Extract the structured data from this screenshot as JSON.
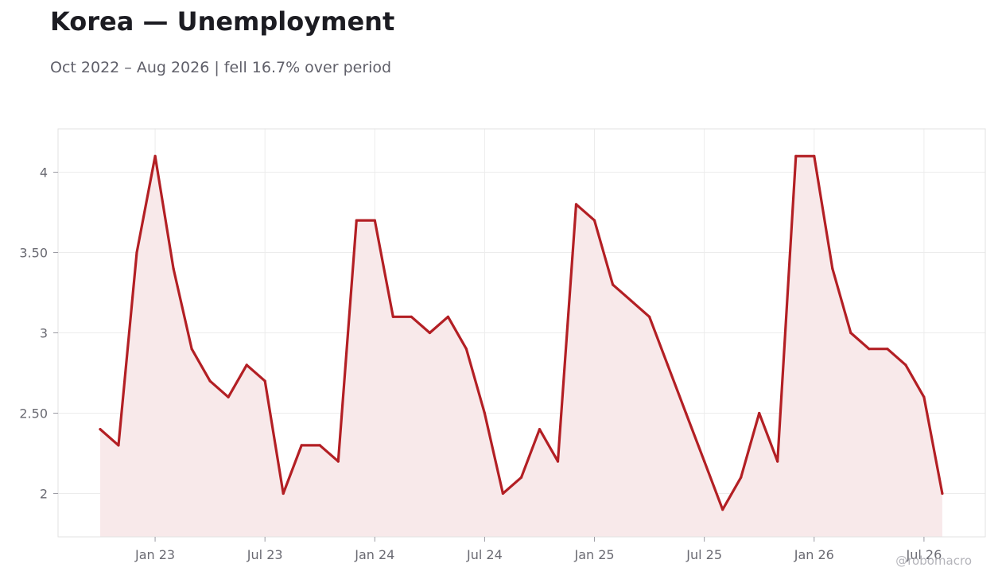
{
  "header": {
    "title": "Korea — Unemployment",
    "subtitle": "Oct 2022 – Aug 2026 | fell 16.7% over period"
  },
  "watermark": "@robomacro",
  "colors": {
    "line": "#b31f24",
    "fill": "#f8e9ea",
    "grid": "#ececec",
    "frame": "#e2e2e2"
  },
  "chart_data": {
    "type": "area",
    "title": "Korea — Unemployment",
    "xlabel": "",
    "ylabel": "",
    "grid": true,
    "legend": "none",
    "ylim": [
      1.73,
      4.27
    ],
    "x": [
      "2022-10",
      "2022-11",
      "2022-12",
      "2023-01",
      "2023-02",
      "2023-03",
      "2023-04",
      "2023-05",
      "2023-06",
      "2023-07",
      "2023-08",
      "2023-09",
      "2023-10",
      "2023-11",
      "2023-12",
      "2024-01",
      "2024-02",
      "2024-03",
      "2024-04",
      "2024-05",
      "2024-06",
      "2024-07",
      "2024-08",
      "2024-09",
      "2024-10",
      "2024-11",
      "2024-12",
      "2025-01",
      "2025-02",
      "2025-03",
      "2025-04",
      "2025-05",
      "2025-06",
      "2025-07",
      "2025-08",
      "2025-09",
      "2025-10",
      "2025-11",
      "2025-12",
      "2026-01",
      "2026-02",
      "2026-03",
      "2026-04",
      "2026-05",
      "2026-06",
      "2026-07",
      "2026-08"
    ],
    "series": [
      {
        "values": [
          2.4,
          2.3,
          3.5,
          4.1,
          3.4,
          2.9,
          2.7,
          2.6,
          2.8,
          2.7,
          2.0,
          2.3,
          2.3,
          2.2,
          3.7,
          3.7,
          3.1,
          3.1,
          3.0,
          3.1,
          2.9,
          2.5,
          2.0,
          2.1,
          2.4,
          2.2,
          3.8,
          3.7,
          3.3,
          3.2,
          3.1,
          2.8,
          2.5,
          2.2,
          1.9,
          2.1,
          2.5,
          2.2,
          4.1,
          4.1,
          3.4,
          3.0,
          2.9,
          2.9,
          2.8,
          2.6,
          2.0
        ]
      }
    ],
    "y_ticks": [
      {
        "value": 2,
        "label": "2"
      },
      {
        "value": 2.5,
        "label": "2.50"
      },
      {
        "value": 3,
        "label": "3"
      },
      {
        "value": 3.5,
        "label": "3.50"
      },
      {
        "value": 4,
        "label": "4"
      }
    ],
    "x_ticks": [
      {
        "date": "2023-01",
        "label": "Jan 23"
      },
      {
        "date": "2023-07",
        "label": "Jul 23"
      },
      {
        "date": "2024-01",
        "label": "Jan 24"
      },
      {
        "date": "2024-07",
        "label": "Jul 24"
      },
      {
        "date": "2025-01",
        "label": "Jan 25"
      },
      {
        "date": "2025-07",
        "label": "Jul 25"
      },
      {
        "date": "2026-01",
        "label": "Jan 26"
      },
      {
        "date": "2026-07",
        "label": "Jul 26"
      }
    ]
  }
}
